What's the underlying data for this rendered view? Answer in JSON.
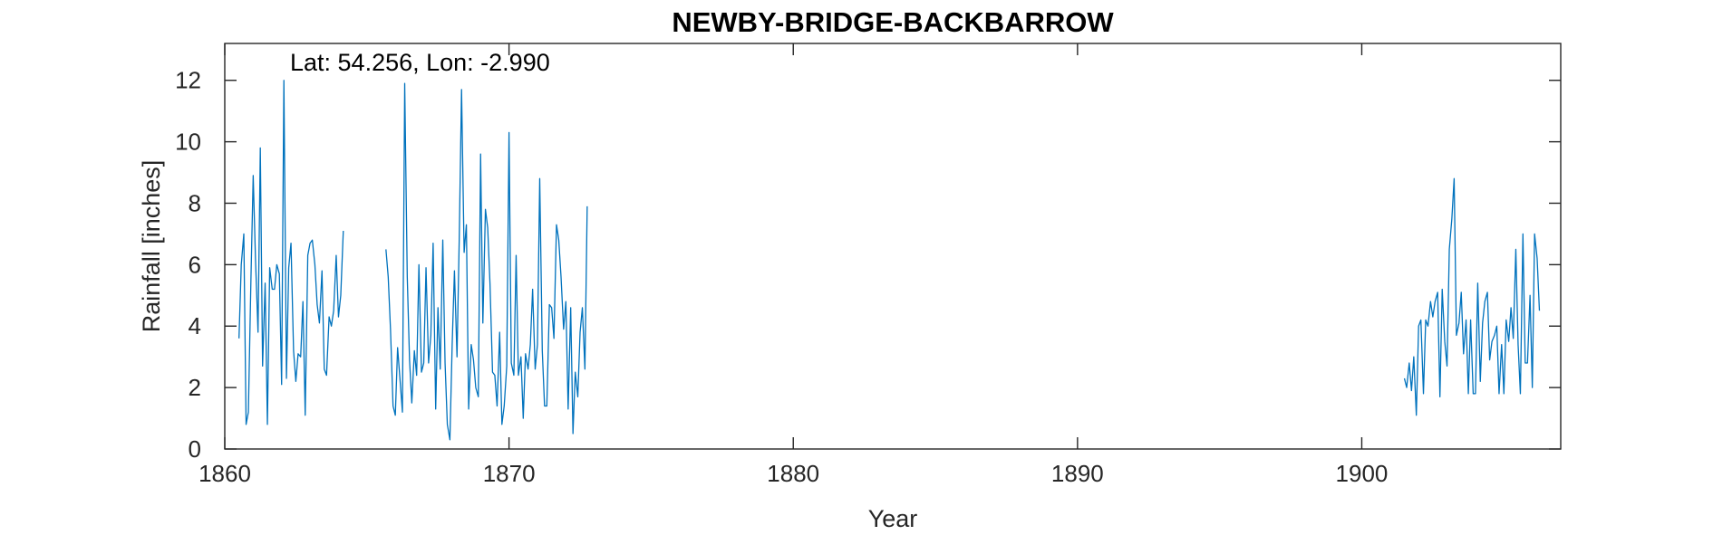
{
  "chart_data": {
    "type": "line",
    "title": "NEWBY-BRIDGE-BACKBARROW",
    "xlabel": "Year",
    "ylabel": "Rainfall [inches]",
    "annotation": "Lat: 54.256, Lon: -2.990",
    "xlim": [
      1860,
      1907
    ],
    "ylim": [
      0,
      13.2
    ],
    "xticks": [
      1860,
      1870,
      1880,
      1890,
      1900
    ],
    "yticks": [
      0,
      2,
      4,
      6,
      8,
      10,
      12
    ],
    "grid": false,
    "legend": "none",
    "line_color": "#0072BD",
    "series": [
      {
        "x": [
          1860.5,
          1860.58,
          1860.67,
          1860.75,
          1860.83,
          1860.92,
          1861.0,
          1861.08,
          1861.17,
          1861.25,
          1861.33,
          1861.42,
          1861.5,
          1861.58,
          1861.67,
          1861.75,
          1861.83,
          1861.92,
          1862.0,
          1862.08,
          1862.17,
          1862.25,
          1862.33,
          1862.42,
          1862.5,
          1862.58,
          1862.67,
          1862.75,
          1862.83,
          1862.92,
          1863.0,
          1863.08,
          1863.17,
          1863.25,
          1863.33,
          1863.42,
          1863.5,
          1863.58,
          1863.67,
          1863.75,
          1863.83,
          1863.92,
          1864.0,
          1864.08,
          1864.17,
          1864.25,
          1864.33,
          1864.42,
          1864.5,
          1864.58,
          1864.67,
          1864.75
        ],
        "values": [
          3.6,
          6.0,
          7.0,
          0.8,
          1.2,
          5.5,
          8.9,
          6.2,
          3.8,
          9.8,
          2.7,
          5.4,
          0.8,
          5.9,
          5.2,
          5.2,
          6.0,
          5.7,
          2.1,
          12.0,
          2.3,
          5.9,
          6.7,
          3.2,
          2.2,
          3.1,
          3.0,
          4.8,
          1.1,
          6.3,
          6.7,
          6.8,
          6.0,
          4.7,
          4.1,
          5.8,
          2.6,
          2.4,
          4.3,
          4.0,
          4.5,
          6.3,
          4.3,
          5.0,
          7.1,
          null,
          null,
          null,
          null,
          null,
          null,
          null
        ]
      },
      {
        "x": [
          1865.67,
          1865.75,
          1865.83,
          1865.92,
          1866.0,
          1866.08,
          1866.17,
          1866.25,
          1866.33,
          1866.42,
          1866.5,
          1866.58,
          1866.67,
          1866.75,
          1866.83,
          1866.92,
          1867.0,
          1867.08,
          1867.17,
          1867.25,
          1867.33,
          1867.42,
          1867.5,
          1867.58,
          1867.67,
          1867.75,
          1867.83,
          1867.92,
          1868.0,
          1868.08,
          1868.17,
          1868.25,
          1868.33,
          1868.42,
          1868.5,
          1868.58,
          1868.67,
          1868.75,
          1868.83,
          1868.92,
          1869.0,
          1869.08,
          1869.17,
          1869.25,
          1869.33,
          1869.42,
          1869.5,
          1869.58,
          1869.67,
          1869.75,
          1869.83,
          1869.92,
          1870.0,
          1870.08,
          1870.17,
          1870.25,
          1870.33,
          1870.42,
          1870.5,
          1870.58,
          1870.67,
          1870.75,
          1870.83,
          1870.92,
          1871.0,
          1871.08,
          1871.17,
          1871.25,
          1871.33,
          1871.42,
          1871.5,
          1871.58,
          1871.67,
          1871.75,
          1871.83,
          1871.92,
          1872.0,
          1872.08,
          1872.17,
          1872.25,
          1872.33,
          1872.42,
          1872.5,
          1872.58,
          1872.67,
          1872.75,
          1872.83,
          1872.92,
          1873.0,
          1873.08,
          1873.17,
          1873.25
        ],
        "values": [
          6.5,
          5.6,
          3.9,
          1.4,
          1.1,
          3.3,
          2.2,
          1.2,
          11.9,
          5.6,
          2.9,
          1.5,
          3.2,
          2.4,
          6.0,
          2.5,
          2.8,
          5.9,
          2.8,
          3.7,
          6.7,
          1.3,
          4.6,
          2.6,
          6.8,
          2.8,
          0.8,
          0.3,
          3.4,
          5.8,
          3.0,
          6.9,
          11.7,
          6.4,
          7.3,
          1.3,
          3.4,
          2.9,
          2.0,
          1.7,
          9.6,
          4.1,
          7.8,
          7.2,
          5.4,
          2.5,
          2.4,
          1.4,
          3.8,
          0.8,
          1.4,
          2.7,
          10.3,
          2.8,
          2.4,
          6.3,
          2.4,
          3.0,
          1.0,
          3.1,
          2.6,
          3.4,
          5.2,
          2.6,
          3.4,
          8.8,
          3.2,
          1.4,
          1.4,
          4.7,
          4.6,
          3.6,
          7.3,
          6.8,
          5.6,
          3.9,
          4.8,
          1.3,
          4.6,
          0.5,
          2.5,
          1.7,
          3.8,
          4.6,
          2.6,
          7.9,
          null,
          null,
          null,
          null,
          null,
          null
        ]
      },
      {
        "x": [
          1901.5,
          1901.58,
          1901.67,
          1901.75,
          1901.83,
          1901.92,
          1902.0,
          1902.08,
          1902.17,
          1902.25,
          1902.33,
          1902.42,
          1902.5,
          1902.58,
          1902.67,
          1902.75,
          1902.83,
          1902.92,
          1903.0,
          1903.08,
          1903.17,
          1903.25,
          1903.33,
          1903.42,
          1903.5,
          1903.58,
          1903.67,
          1903.75,
          1903.83,
          1903.92,
          1904.0,
          1904.08,
          1904.17,
          1904.25,
          1904.33,
          1904.42,
          1904.5,
          1904.58,
          1904.67,
          1904.75,
          1904.83,
          1904.92,
          1905.0,
          1905.08,
          1905.17,
          1905.25,
          1905.33,
          1905.42,
          1905.5,
          1905.58,
          1905.67,
          1905.75,
          1905.83,
          1905.92,
          1906.0,
          1906.08,
          1906.17,
          1906.25,
          1906.33,
          1906.42
        ],
        "values": [
          2.3,
          2.0,
          2.8,
          1.9,
          3.0,
          1.1,
          4.0,
          4.2,
          1.8,
          4.2,
          4.0,
          4.8,
          4.3,
          4.8,
          5.1,
          1.7,
          5.2,
          3.5,
          2.7,
          6.5,
          7.5,
          8.8,
          3.7,
          4.1,
          5.1,
          3.1,
          4.2,
          1.8,
          4.2,
          1.8,
          1.8,
          5.4,
          2.2,
          4.1,
          4.8,
          5.1,
          2.9,
          3.5,
          3.7,
          4.0,
          1.8,
          3.4,
          1.8,
          4.2,
          3.5,
          4.6,
          3.6,
          6.5,
          3.4,
          1.8,
          7.0,
          2.8,
          2.8,
          5.0,
          2.0,
          7.0,
          6.2,
          4.5,
          null,
          null
        ]
      }
    ]
  }
}
